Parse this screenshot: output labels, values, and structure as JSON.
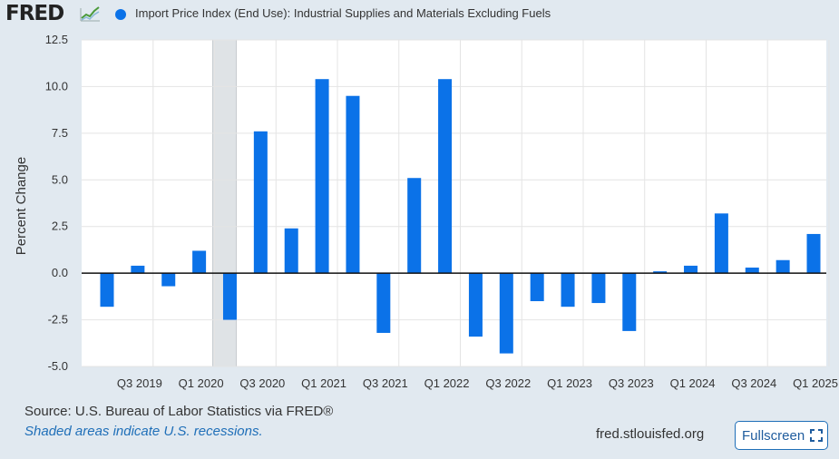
{
  "header": {
    "logo_text": "FRED",
    "legend_label": "Import Price Index (End Use): Industrial Supplies and Materials Excluding Fuels",
    "series_color": "#0b72e8"
  },
  "footer": {
    "source": "Source: U.S. Bureau of Labor Statistics via FRED®",
    "note": "Shaded areas indicate U.S. recessions.",
    "url": "fred.stlouisfed.org",
    "fullscreen_label": "Fullscreen"
  },
  "chart_data": {
    "type": "bar",
    "ylabel": "Percent Change",
    "ylim": [
      -5.0,
      12.5
    ],
    "yticks": [
      "12.5",
      "10.0",
      "7.5",
      "5.0",
      "2.5",
      "0.0",
      "-2.5",
      "-5.0"
    ],
    "ytick_values": [
      12.5,
      10.0,
      7.5,
      5.0,
      2.5,
      0.0,
      -2.5,
      -5.0
    ],
    "grid": true,
    "legend_position": "top",
    "categories": [
      "Q2 2019",
      "Q3 2019",
      "Q4 2019",
      "Q1 2020",
      "Q2 2020",
      "Q3 2020",
      "Q4 2020",
      "Q1 2021",
      "Q2 2021",
      "Q3 2021",
      "Q4 2021",
      "Q1 2022",
      "Q2 2022",
      "Q3 2022",
      "Q4 2022",
      "Q1 2023",
      "Q2 2023",
      "Q3 2023",
      "Q4 2023",
      "Q1 2024",
      "Q2 2024",
      "Q3 2024",
      "Q4 2024",
      "Q1 2025"
    ],
    "values": [
      -1.8,
      0.4,
      -0.7,
      1.2,
      -2.5,
      7.6,
      2.4,
      10.4,
      9.5,
      -3.2,
      5.1,
      10.4,
      -3.4,
      -4.3,
      -1.5,
      -1.8,
      -1.6,
      -3.1,
      0.1,
      0.4,
      3.2,
      0.3,
      0.7,
      2.1
    ],
    "xtick_labels": [
      "Q3 2019",
      "Q1 2020",
      "Q3 2020",
      "Q1 2021",
      "Q3 2021",
      "Q1 2022",
      "Q3 2022",
      "Q1 2023",
      "Q3 2023",
      "Q1 2024",
      "Q3 2024",
      "Q1 2025"
    ],
    "xtick_indices": [
      1,
      3,
      5,
      7,
      9,
      11,
      13,
      15,
      17,
      19,
      21,
      23
    ],
    "recession_shading": [
      {
        "start_index": 3.5,
        "end_index": 4.15
      }
    ],
    "recession_color": "#dfe3e6"
  }
}
